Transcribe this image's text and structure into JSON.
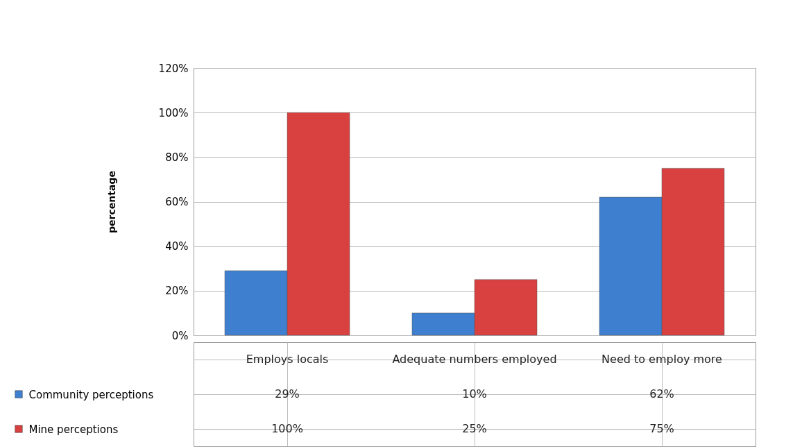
{
  "chart_data": {
    "type": "bar",
    "ylabel": "percentage",
    "categories": [
      "Employs locals",
      "Adequate numbers employed",
      "Need to employ more"
    ],
    "series": [
      {
        "name": "Community perceptions",
        "color": "#3f7fd0",
        "values": [
          29,
          10,
          62
        ],
        "value_labels": [
          "29%",
          "10%",
          "62%"
        ]
      },
      {
        "name": "Mine perceptions",
        "color": "#d94040",
        "values": [
          100,
          25,
          75
        ],
        "value_labels": [
          "100%",
          "25%",
          "75%"
        ]
      }
    ],
    "ylim": [
      0,
      120
    ],
    "yticks": [
      {
        "value": 0,
        "label": "0%"
      },
      {
        "value": 20,
        "label": "20%"
      },
      {
        "value": 40,
        "label": "40%"
      },
      {
        "value": 60,
        "label": "60%"
      },
      {
        "value": 80,
        "label": "80%"
      },
      {
        "value": 100,
        "label": "100%"
      },
      {
        "value": 120,
        "label": "120%"
      }
    ],
    "grid": "y",
    "legend": "bottom left"
  }
}
